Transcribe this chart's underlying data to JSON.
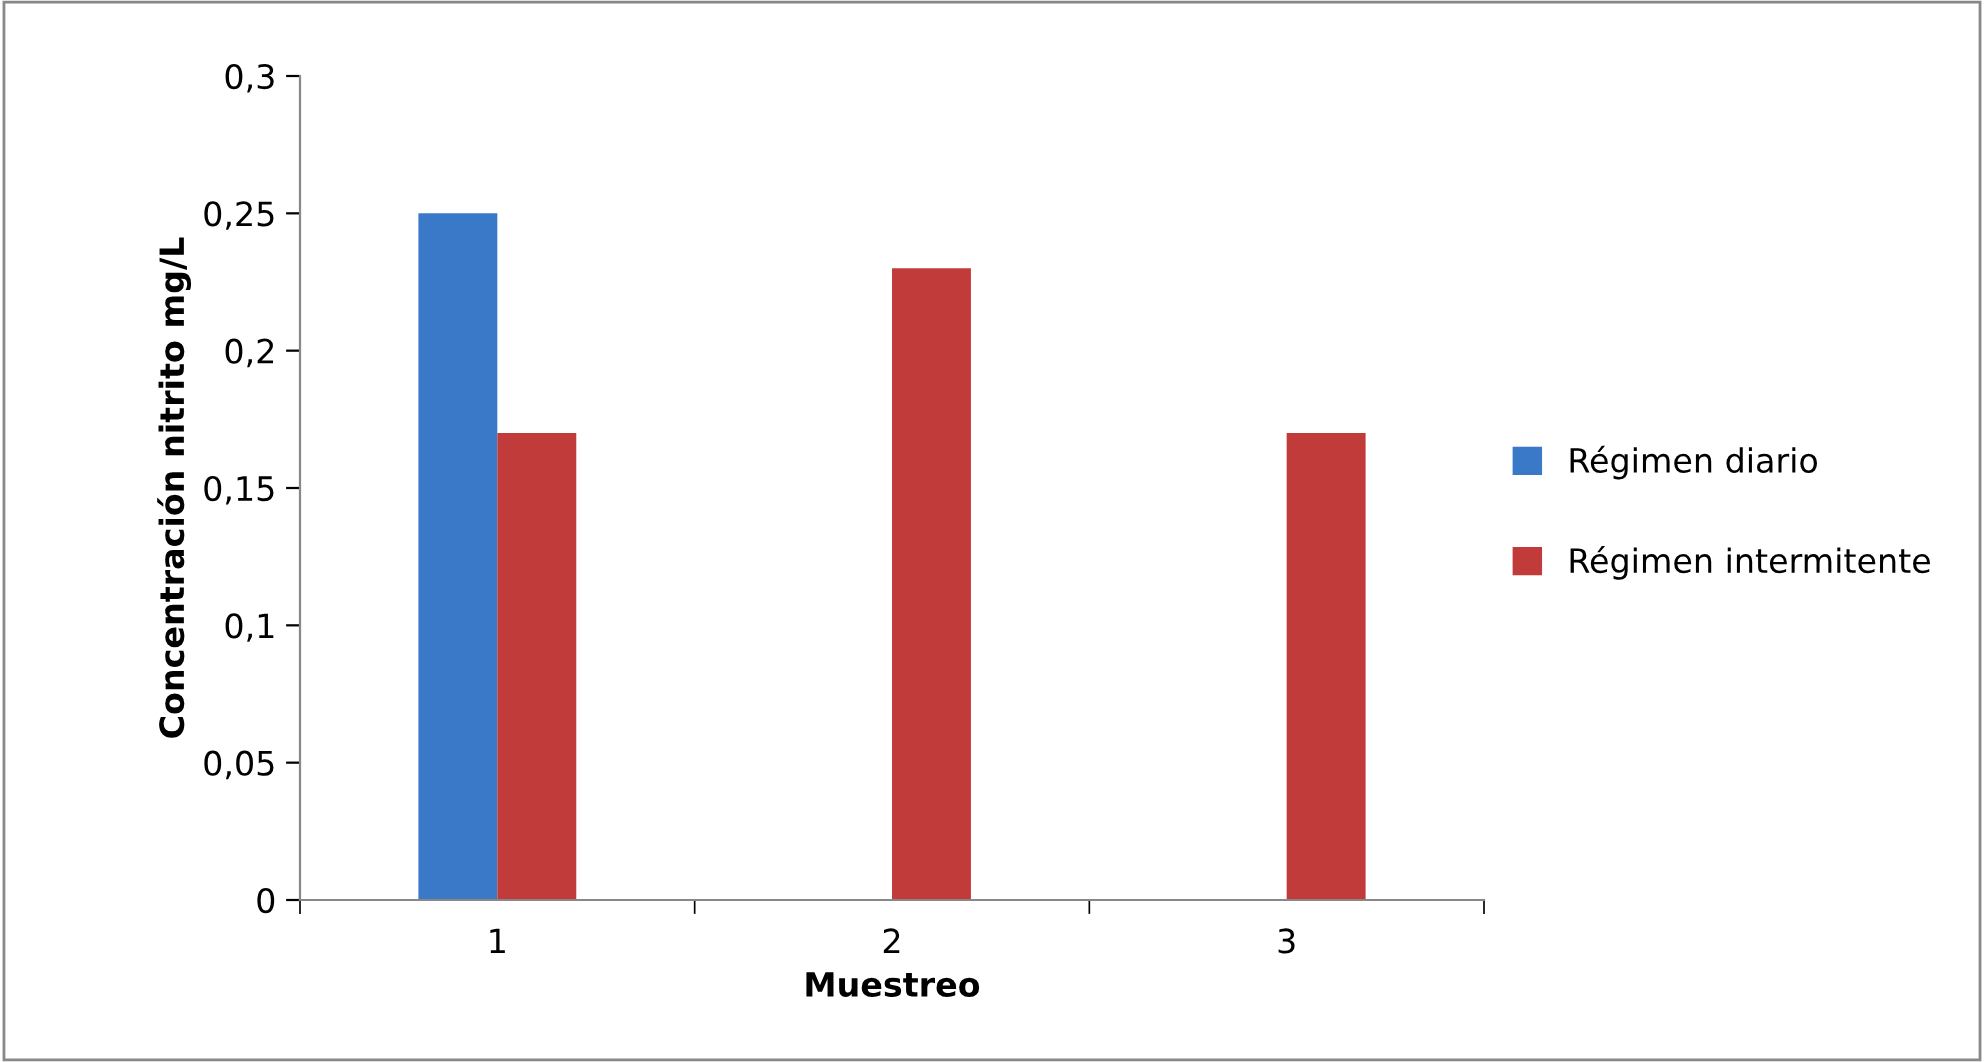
{
  "chart_data": {
    "type": "bar",
    "xlabel": "Muestreo",
    "ylabel": "Concentración nitrito mg/L",
    "categories": [
      "1",
      "2",
      "3"
    ],
    "series": [
      {
        "name": "Régimen diario",
        "color": "#3a78c8",
        "values": [
          0.25,
          null,
          null
        ]
      },
      {
        "name": "Régimen intermitente",
        "color": "#c23b3b",
        "values": [
          0.17,
          0.23,
          0.17
        ]
      }
    ],
    "ylim": [
      0,
      0.3
    ],
    "yticks": [
      0,
      {
        "value": 0.05,
        "label": "0,05"
      },
      {
        "value": 0.1,
        "label": "0,1"
      },
      {
        "value": 0.15,
        "label": "0,15"
      },
      {
        "value": 0.2,
        "label": "0,2"
      },
      {
        "value": 0.25,
        "label": "0,25"
      },
      {
        "value": 0.3,
        "label": "0,3"
      }
    ],
    "grid": false,
    "legend": "right"
  }
}
